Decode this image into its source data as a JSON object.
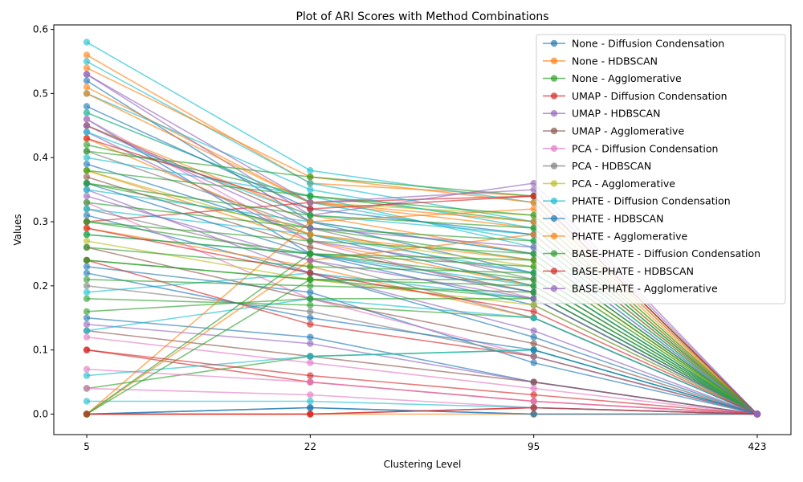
{
  "chart_data": {
    "type": "line",
    "title": "Plot of ARI Scores with Method Combinations",
    "xlabel": "Clustering Level",
    "ylabel": "Values",
    "x": [
      "5",
      "22",
      "95",
      "423"
    ],
    "ylim": [
      -0.032,
      0.607
    ],
    "yticks": [
      "0.0",
      "0.1",
      "0.2",
      "0.3",
      "0.4",
      "0.5",
      "0.6"
    ],
    "grid": false,
    "legend_position": "top-right",
    "series": [
      {
        "name": "None - Diffusion Condensation",
        "color": "#1f77b4",
        "runs": [
          [
            0.52,
            0.3,
            0.22,
            0
          ],
          [
            0.46,
            0.25,
            0.17,
            0
          ],
          [
            0.39,
            0.28,
            0.2,
            0
          ],
          [
            0.31,
            0.22,
            0.12,
            0
          ],
          [
            0.23,
            0.19,
            0.08,
            0
          ],
          [
            0.15,
            0.12,
            0.05,
            0
          ],
          [
            0.0,
            0.01,
            0.0,
            0
          ]
        ]
      },
      {
        "name": "None - HDBSCAN",
        "color": "#ff7f0e",
        "runs": [
          [
            0.56,
            0.36,
            0.34,
            0
          ],
          [
            0.51,
            0.33,
            0.29,
            0
          ],
          [
            0.45,
            0.31,
            0.25,
            0
          ],
          [
            0.38,
            0.27,
            0.2,
            0
          ],
          [
            0.29,
            0.23,
            0.15,
            0
          ],
          [
            0.0,
            0.0,
            0.0,
            0
          ]
        ]
      },
      {
        "name": "None - Agglomerative",
        "color": "#2ca02c",
        "runs": [
          [
            0.42,
            0.34,
            0.3,
            0
          ],
          [
            0.36,
            0.29,
            0.24,
            0
          ],
          [
            0.3,
            0.25,
            0.21,
            0
          ],
          [
            0.24,
            0.21,
            0.18,
            0
          ],
          [
            0.18,
            0.17,
            0.15,
            0
          ],
          [
            0.04,
            0.09,
            0.1,
            0
          ]
        ]
      },
      {
        "name": "UMAP - Diffusion Condensation",
        "color": "#d62728",
        "runs": [
          [
            0.3,
            0.33,
            0.34,
            0
          ],
          [
            0.24,
            0.14,
            0.09,
            0
          ],
          [
            0.1,
            0.05,
            0.02,
            0
          ],
          [
            0.0,
            0.0,
            0.01,
            0
          ]
        ]
      },
      {
        "name": "UMAP - HDBSCAN",
        "color": "#9467bd",
        "runs": [
          [
            0.53,
            0.31,
            0.36,
            0
          ],
          [
            0.44,
            0.27,
            0.22,
            0
          ],
          [
            0.35,
            0.22,
            0.13,
            0
          ],
          [
            0.14,
            0.11,
            0.05,
            0
          ]
        ]
      },
      {
        "name": "UMAP - Agglomerative",
        "color": "#8c564b",
        "runs": [
          [
            0.45,
            0.3,
            0.25,
            0
          ],
          [
            0.37,
            0.26,
            0.19,
            0
          ],
          [
            0.26,
            0.18,
            0.11,
            0
          ],
          [
            0.13,
            0.09,
            0.05,
            0
          ]
        ]
      },
      {
        "name": "PCA - Diffusion Condensation",
        "color": "#e377c2",
        "runs": [
          [
            0.46,
            0.27,
            0.18,
            0
          ],
          [
            0.33,
            0.18,
            0.09,
            0
          ],
          [
            0.12,
            0.08,
            0.04,
            0
          ],
          [
            0.07,
            0.05,
            0.02,
            0
          ],
          [
            0.04,
            0.03,
            0.01,
            0
          ]
        ]
      },
      {
        "name": "PCA - HDBSCAN",
        "color": "#7f7f7f",
        "runs": [
          [
            0.41,
            0.29,
            0.21,
            0
          ],
          [
            0.32,
            0.24,
            0.15,
            0
          ],
          [
            0.2,
            0.16,
            0.09,
            0
          ]
        ]
      },
      {
        "name": "PCA - Agglomerative",
        "color": "#bcbd22",
        "runs": [
          [
            0.47,
            0.33,
            0.31,
            0
          ],
          [
            0.38,
            0.28,
            0.23,
            0
          ],
          [
            0.27,
            0.21,
            0.17,
            0
          ]
        ]
      },
      {
        "name": "PHATE - Diffusion Condensation",
        "color": "#17becf",
        "runs": [
          [
            0.58,
            0.38,
            0.33,
            0
          ],
          [
            0.55,
            0.36,
            0.3,
            0
          ],
          [
            0.5,
            0.35,
            0.29,
            0
          ],
          [
            0.47,
            0.33,
            0.27,
            0
          ],
          [
            0.44,
            0.31,
            0.28,
            0
          ],
          [
            0.4,
            0.34,
            0.26,
            0
          ],
          [
            0.35,
            0.3,
            0.25,
            0
          ],
          [
            0.32,
            0.28,
            0.22,
            0
          ],
          [
            0.28,
            0.25,
            0.2,
            0
          ],
          [
            0.19,
            0.22,
            0.18,
            0
          ],
          [
            0.13,
            0.18,
            0.15,
            0
          ],
          [
            0.06,
            0.09,
            0.1,
            0
          ],
          [
            0.02,
            0.02,
            0.01,
            0
          ]
        ]
      },
      {
        "name": "PHATE - HDBSCAN",
        "color": "#1f77b4",
        "runs": [
          [
            0.48,
            0.32,
            0.28,
            0
          ],
          [
            0.36,
            0.25,
            0.19,
            0
          ],
          [
            0.22,
            0.15,
            0.1,
            0
          ],
          [
            0.0,
            0.01,
            0.0,
            0
          ]
        ]
      },
      {
        "name": "PHATE - Agglomerative",
        "color": "#ff7f0e",
        "runs": [
          [
            0.54,
            0.37,
            0.33,
            0
          ],
          [
            0.5,
            0.33,
            0.3,
            0
          ],
          [
            0.43,
            0.28,
            0.24,
            0
          ],
          [
            0.0,
            0.3,
            0.32,
            0
          ],
          [
            0.0,
            0.24,
            0.28,
            0
          ]
        ]
      },
      {
        "name": "BASE-PHATE - Diffusion Condensation",
        "color": "#2ca02c",
        "runs": [
          [
            0.41,
            0.37,
            0.34,
            0
          ],
          [
            0.38,
            0.34,
            0.31,
            0
          ],
          [
            0.36,
            0.31,
            0.29,
            0
          ],
          [
            0.33,
            0.29,
            0.27,
            0
          ],
          [
            0.3,
            0.27,
            0.25,
            0
          ],
          [
            0.28,
            0.25,
            0.24,
            0
          ],
          [
            0.26,
            0.23,
            0.22,
            0
          ],
          [
            0.24,
            0.21,
            0.21,
            0
          ],
          [
            0.21,
            0.2,
            0.19,
            0
          ],
          [
            0.16,
            0.18,
            0.18,
            0
          ],
          [
            0.0,
            0.25,
            0.23,
            0
          ],
          [
            0.0,
            0.21,
            0.2,
            0
          ]
        ]
      },
      {
        "name": "BASE-PHATE - HDBSCAN",
        "color": "#d62728",
        "runs": [
          [
            0.43,
            0.32,
            0.34,
            0
          ],
          [
            0.29,
            0.22,
            0.16,
            0
          ],
          [
            0.1,
            0.06,
            0.03,
            0
          ],
          [
            0.0,
            0.0,
            0.01,
            0
          ]
        ]
      },
      {
        "name": "BASE-PHATE - Agglomerative",
        "color": "#9467bd",
        "runs": [
          [
            0.53,
            0.33,
            0.35,
            0
          ],
          [
            0.45,
            0.29,
            0.26,
            0
          ],
          [
            0.34,
            0.24,
            0.18,
            0
          ]
        ]
      }
    ]
  }
}
